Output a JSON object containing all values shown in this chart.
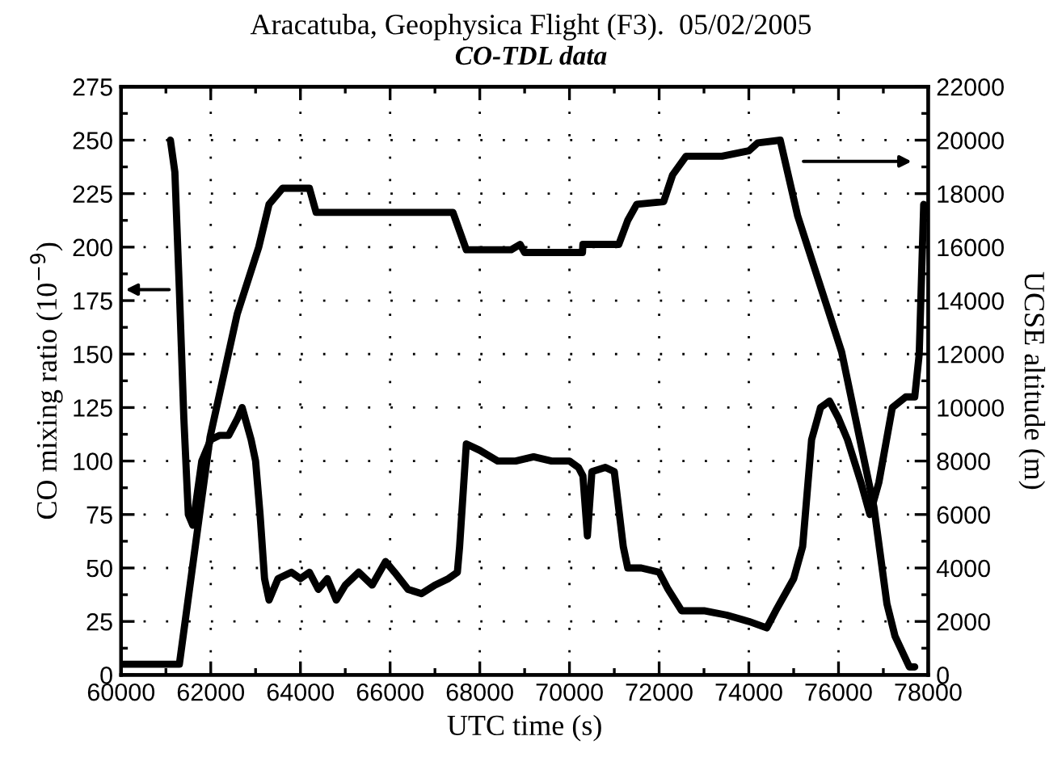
{
  "chart_data": {
    "type": "line",
    "title": "Aracatuba, Geophysica Flight (F3).  05/02/2005",
    "subtitle": "CO-TDL data",
    "xlabel": "UTC time (s)",
    "ylabel": "CO mixing ratio (10$^{−9}$)",
    "y2label": "UCSE altitude (m)",
    "xlim": [
      60000,
      78000
    ],
    "xticks": [
      60000,
      62000,
      64000,
      66000,
      68000,
      70000,
      72000,
      74000,
      76000,
      78000
    ],
    "ylim": [
      0,
      275
    ],
    "yticks": [
      0,
      25,
      50,
      75,
      100,
      125,
      150,
      175,
      200,
      225,
      250,
      275
    ],
    "y2lim": [
      0,
      22000
    ],
    "y2ticks": [
      0,
      2000,
      4000,
      6000,
      8000,
      10000,
      12000,
      14000,
      16000,
      18000,
      20000,
      22000
    ],
    "grid": true,
    "legend": false,
    "marker": "none",
    "line_style": "solid",
    "series": [
      {
        "color": "#000000",
        "x": [
          61100,
          61200,
          61300,
          61400,
          61500,
          61600,
          61800,
          62000,
          62200,
          62400,
          62600,
          62700,
          62900,
          63000,
          63100,
          63200,
          63300,
          63500,
          63800,
          64000,
          64200,
          64400,
          64600,
          64800,
          65000,
          65300,
          65600,
          65900,
          66100,
          66400,
          66700,
          67000,
          67300,
          67500,
          67550,
          67700,
          68000,
          68400,
          68800,
          69200,
          69600,
          70000,
          70200,
          70300,
          70400,
          70500,
          70800,
          71000,
          71200,
          71300,
          71600,
          72000,
          72200,
          72500,
          73000,
          73500,
          74000,
          74400,
          74600,
          75000,
          75200,
          75400,
          75600,
          75800,
          76000,
          76200,
          76500,
          76700,
          76900,
          77200,
          77500,
          77700,
          77800,
          77900
        ],
        "values": [
          250,
          235,
          180,
          120,
          75,
          70,
          100,
          110,
          112,
          112,
          120,
          125,
          110,
          100,
          75,
          45,
          35,
          45,
          48,
          45,
          48,
          40,
          45,
          35,
          42,
          48,
          42,
          53,
          48,
          40,
          38,
          42,
          45,
          48,
          60,
          108,
          105,
          100,
          100,
          102,
          100,
          100,
          97,
          93,
          65,
          95,
          97,
          95,
          60,
          50,
          50,
          48,
          40,
          30,
          30,
          28,
          25,
          22,
          30,
          45,
          60,
          110,
          125,
          128,
          120,
          110,
          90,
          75,
          90,
          125,
          130,
          130,
          150,
          220
        ]
      },
      {
        "color": "#000000",
        "axis": "y2",
        "x": [
          60000,
          61300,
          61985,
          62590,
          63070,
          63300,
          63600,
          64200,
          64350,
          67400,
          67700,
          68700,
          68900,
          69000,
          70290,
          70300,
          71100,
          71300,
          71500,
          72100,
          72300,
          72600,
          73400,
          74000,
          74200,
          74700,
          75090,
          76070,
          76790,
          77080,
          77260,
          77580,
          77700
        ],
        "values": [
          400,
          400,
          8900,
          13500,
          16000,
          17600,
          18200,
          18200,
          17300,
          17300,
          15900,
          15900,
          16100,
          15800,
          15800,
          16100,
          16100,
          17000,
          17600,
          17700,
          18700,
          19400,
          19400,
          19600,
          19900,
          20000,
          17160,
          12080,
          6280,
          2660,
          1450,
          300,
          300
        ]
      }
    ]
  }
}
